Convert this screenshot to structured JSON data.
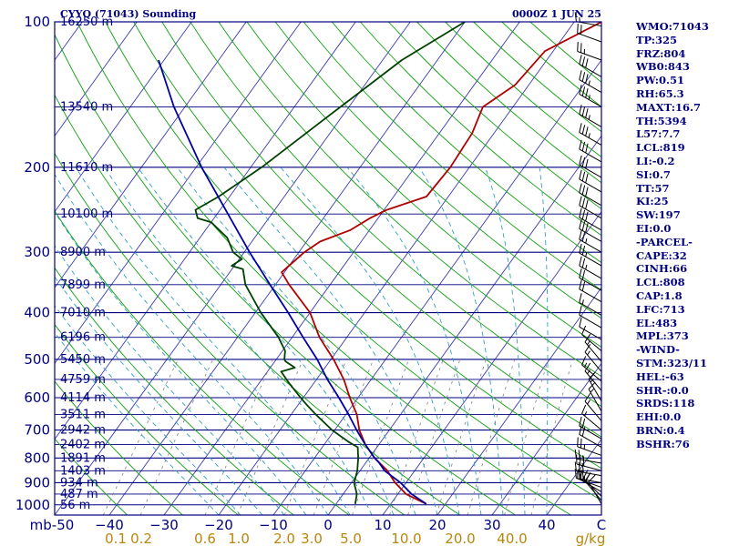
{
  "chart_data": {
    "type": "skew-t",
    "title": "CYYQ (71043) Sounding",
    "time": "0000Z  1 JUN 25",
    "pressure_axis": {
      "ticks": [
        100,
        200,
        300,
        400,
        500,
        600,
        700,
        800,
        900,
        1000
      ],
      "unit": "mb",
      "range": [
        1000,
        100
      ],
      "scale": "log"
    },
    "temperature_axis": {
      "ticks": [
        -50,
        -40,
        -30,
        -20,
        -10,
        0,
        10,
        20,
        30,
        40,
        50
      ],
      "tick_labels": [
        "mb-50",
        "−40",
        "−30",
        "−20",
        "−10",
        "0",
        "10",
        "20",
        "30",
        "40",
        "C"
      ],
      "unit": "C"
    },
    "mixing_ratio_labels": [
      "0.1",
      "0.2",
      "0.6",
      "1.0",
      "2.0",
      "3.0",
      "5.0",
      "10.0",
      "20.0",
      "40.0",
      "g/kg"
    ],
    "height_labels": [
      {
        "p": 100,
        "label": "16250 m"
      },
      {
        "p": 150,
        "label": "13540 m"
      },
      {
        "p": 200,
        "label": "11610 m"
      },
      {
        "p": 250,
        "label": "10100 m"
      },
      {
        "p": 300,
        "label": "8900 m"
      },
      {
        "p": 350,
        "label": "7899 m"
      },
      {
        "p": 400,
        "label": "7010 m"
      },
      {
        "p": 450,
        "label": "6196 m"
      },
      {
        "p": 500,
        "label": "5450 m"
      },
      {
        "p": 550,
        "label": "4759 m"
      },
      {
        "p": 600,
        "label": "4114 m"
      },
      {
        "p": 650,
        "label": "3511 m"
      },
      {
        "p": 700,
        "label": "2942 m"
      },
      {
        "p": 750,
        "label": "2402 m"
      },
      {
        "p": 800,
        "label": "1891 m"
      },
      {
        "p": 850,
        "label": "1403 m"
      },
      {
        "p": 900,
        "label": "934 m"
      },
      {
        "p": 950,
        "label": "487 m"
      },
      {
        "p": 1000,
        "label": "56 m"
      }
    ],
    "series": [
      {
        "name": "temperature",
        "color": "#b00000",
        "points": [
          [
            996,
            16.5
          ],
          [
            950,
            11.5
          ],
          [
            900,
            8.0
          ],
          [
            850,
            5.0
          ],
          [
            800,
            1.0
          ],
          [
            750,
            -2.5
          ],
          [
            700,
            -5.5
          ],
          [
            650,
            -8.0
          ],
          [
            600,
            -11.5
          ],
          [
            550,
            -15.0
          ],
          [
            500,
            -19.5
          ],
          [
            450,
            -25.0
          ],
          [
            400,
            -30.0
          ],
          [
            350,
            -37.5
          ],
          [
            330,
            -40.5
          ],
          [
            300,
            -39.0
          ],
          [
            285,
            -37.5
          ],
          [
            270,
            -33.5
          ],
          [
            255,
            -31.5
          ],
          [
            245,
            -29.5
          ],
          [
            230,
            -24.0
          ],
          [
            200,
            -23.5
          ],
          [
            170,
            -24.0
          ],
          [
            150,
            -25.5
          ],
          [
            135,
            -22.5
          ],
          [
            115,
            -21.5
          ],
          [
            100,
            -15.0
          ]
        ]
      },
      {
        "name": "dewpoint",
        "color": "#004000",
        "points": [
          [
            996,
            3.5
          ],
          [
            950,
            2.5
          ],
          [
            900,
            0.5
          ],
          [
            850,
            -0.5
          ],
          [
            800,
            -2.0
          ],
          [
            760,
            -3.5
          ],
          [
            740,
            -6.0
          ],
          [
            700,
            -10.5
          ],
          [
            650,
            -15.5
          ],
          [
            620,
            -18.5
          ],
          [
            600,
            -20.5
          ],
          [
            560,
            -24.5
          ],
          [
            530,
            -27.5
          ],
          [
            520,
            -25.5
          ],
          [
            505,
            -28.0
          ],
          [
            500,
            -28.5
          ],
          [
            480,
            -29.5
          ],
          [
            450,
            -32.5
          ],
          [
            400,
            -39.0
          ],
          [
            350,
            -45.5
          ],
          [
            325,
            -48.0
          ],
          [
            320,
            -50.5
          ],
          [
            310,
            -49.5
          ],
          [
            300,
            -52.0
          ],
          [
            280,
            -55.0
          ],
          [
            260,
            -60.0
          ],
          [
            255,
            -63.0
          ],
          [
            245,
            -64.5
          ],
          [
            230,
            -62.0
          ],
          [
            200,
            -58.0
          ],
          [
            160,
            -53.0
          ],
          [
            120,
            -46.5
          ],
          [
            100,
            -40.0
          ]
        ]
      },
      {
        "name": "parcel",
        "color": "#0000a0",
        "points": [
          [
            996,
            16.5
          ],
          [
            950,
            12.5
          ],
          [
            900,
            9.0
          ],
          [
            850,
            4.5
          ],
          [
            819,
            2.5
          ],
          [
            800,
            1.0
          ],
          [
            750,
            -2.5
          ],
          [
            700,
            -6.0
          ],
          [
            650,
            -9.5
          ],
          [
            600,
            -13.5
          ],
          [
            550,
            -18.0
          ],
          [
            500,
            -22.5
          ],
          [
            450,
            -28.0
          ],
          [
            400,
            -34.0
          ],
          [
            350,
            -41.0
          ],
          [
            300,
            -49.0
          ],
          [
            250,
            -58.0
          ],
          [
            200,
            -69.0
          ],
          [
            150,
            -82.0
          ],
          [
            120,
            -91.0
          ]
        ]
      }
    ],
    "wind_barbs": [
      {
        "p": 996,
        "dir": 330,
        "kt": 10
      },
      {
        "p": 980,
        "dir": 320,
        "kt": 15
      },
      {
        "p": 960,
        "dir": 315,
        "kt": 20
      },
      {
        "p": 940,
        "dir": 300,
        "kt": 15
      },
      {
        "p": 920,
        "dir": 290,
        "kt": 25
      },
      {
        "p": 900,
        "dir": 280,
        "kt": 30
      },
      {
        "p": 870,
        "dir": 280,
        "kt": 30
      },
      {
        "p": 850,
        "dir": 285,
        "kt": 30
      },
      {
        "p": 820,
        "dir": 280,
        "kt": 25
      },
      {
        "p": 790,
        "dir": 290,
        "kt": 25
      },
      {
        "p": 760,
        "dir": 300,
        "kt": 20
      },
      {
        "p": 730,
        "dir": 300,
        "kt": 20
      },
      {
        "p": 700,
        "dir": 310,
        "kt": 15
      },
      {
        "p": 670,
        "dir": 320,
        "kt": 15
      },
      {
        "p": 640,
        "dir": 330,
        "kt": 15
      },
      {
        "p": 610,
        "dir": 330,
        "kt": 15
      },
      {
        "p": 580,
        "dir": 320,
        "kt": 15
      },
      {
        "p": 555,
        "dir": 310,
        "kt": 15
      },
      {
        "p": 530,
        "dir": 320,
        "kt": 15
      },
      {
        "p": 505,
        "dir": 320,
        "kt": 15
      },
      {
        "p": 480,
        "dir": 310,
        "kt": 10
      },
      {
        "p": 455,
        "dir": 300,
        "kt": 10
      },
      {
        "p": 430,
        "dir": 300,
        "kt": 10
      },
      {
        "p": 405,
        "dir": 300,
        "kt": 15
      },
      {
        "p": 380,
        "dir": 300,
        "kt": 20
      },
      {
        "p": 360,
        "dir": 300,
        "kt": 20
      },
      {
        "p": 340,
        "dir": 300,
        "kt": 25
      },
      {
        "p": 320,
        "dir": 300,
        "kt": 25
      },
      {
        "p": 300,
        "dir": 300,
        "kt": 25
      },
      {
        "p": 285,
        "dir": 300,
        "kt": 30
      },
      {
        "p": 270,
        "dir": 300,
        "kt": 30
      },
      {
        "p": 255,
        "dir": 300,
        "kt": 30
      },
      {
        "p": 240,
        "dir": 300,
        "kt": 30
      },
      {
        "p": 225,
        "dir": 300,
        "kt": 30
      },
      {
        "p": 210,
        "dir": 300,
        "kt": 30
      },
      {
        "p": 195,
        "dir": 300,
        "kt": 30
      },
      {
        "p": 180,
        "dir": 300,
        "kt": 35
      },
      {
        "p": 165,
        "dir": 300,
        "kt": 35
      },
      {
        "p": 150,
        "dir": 300,
        "kt": 35
      },
      {
        "p": 140,
        "dir": 300,
        "kt": 35
      },
      {
        "p": 130,
        "dir": 300,
        "kt": 30
      },
      {
        "p": 120,
        "dir": 290,
        "kt": 25
      },
      {
        "p": 110,
        "dir": 290,
        "kt": 20
      },
      {
        "p": 102,
        "dir": 280,
        "kt": 15
      }
    ],
    "indices": [
      "WMO:71043",
      "TP:325",
      "FRZ:804",
      "WB0:843",
      "PW:0.51",
      "RH:65.3",
      "MAXT:16.7",
      "TH:5394",
      "L57:7.7",
      "LCL:819",
      "LI:-0.2",
      "SI:0.7",
      "TT:57",
      "KI:25",
      "SW:197",
      "EI:0.0",
      "-PARCEL-",
      "CAPE:32",
      "CINH:66",
      "LCL:808",
      "CAP:1.8",
      "LFC:713",
      "EL:483",
      "MPL:373",
      "-WIND-",
      "STM:323/11",
      "HEL:-63",
      "SHR-:0.0",
      "SRDS:118",
      "EHI:0.0",
      "BRN:0.4",
      "BSHR:76"
    ],
    "colors": {
      "frame": "#000080",
      "isotherm": "#3a3ab0",
      "dry_adiabat": "#10a010",
      "moist_adiabat": "#30a0c0",
      "mixing_ratio": "#808080",
      "temperature": "#b00000",
      "dewpoint": "#004000",
      "parcel": "#0000a0"
    }
  }
}
